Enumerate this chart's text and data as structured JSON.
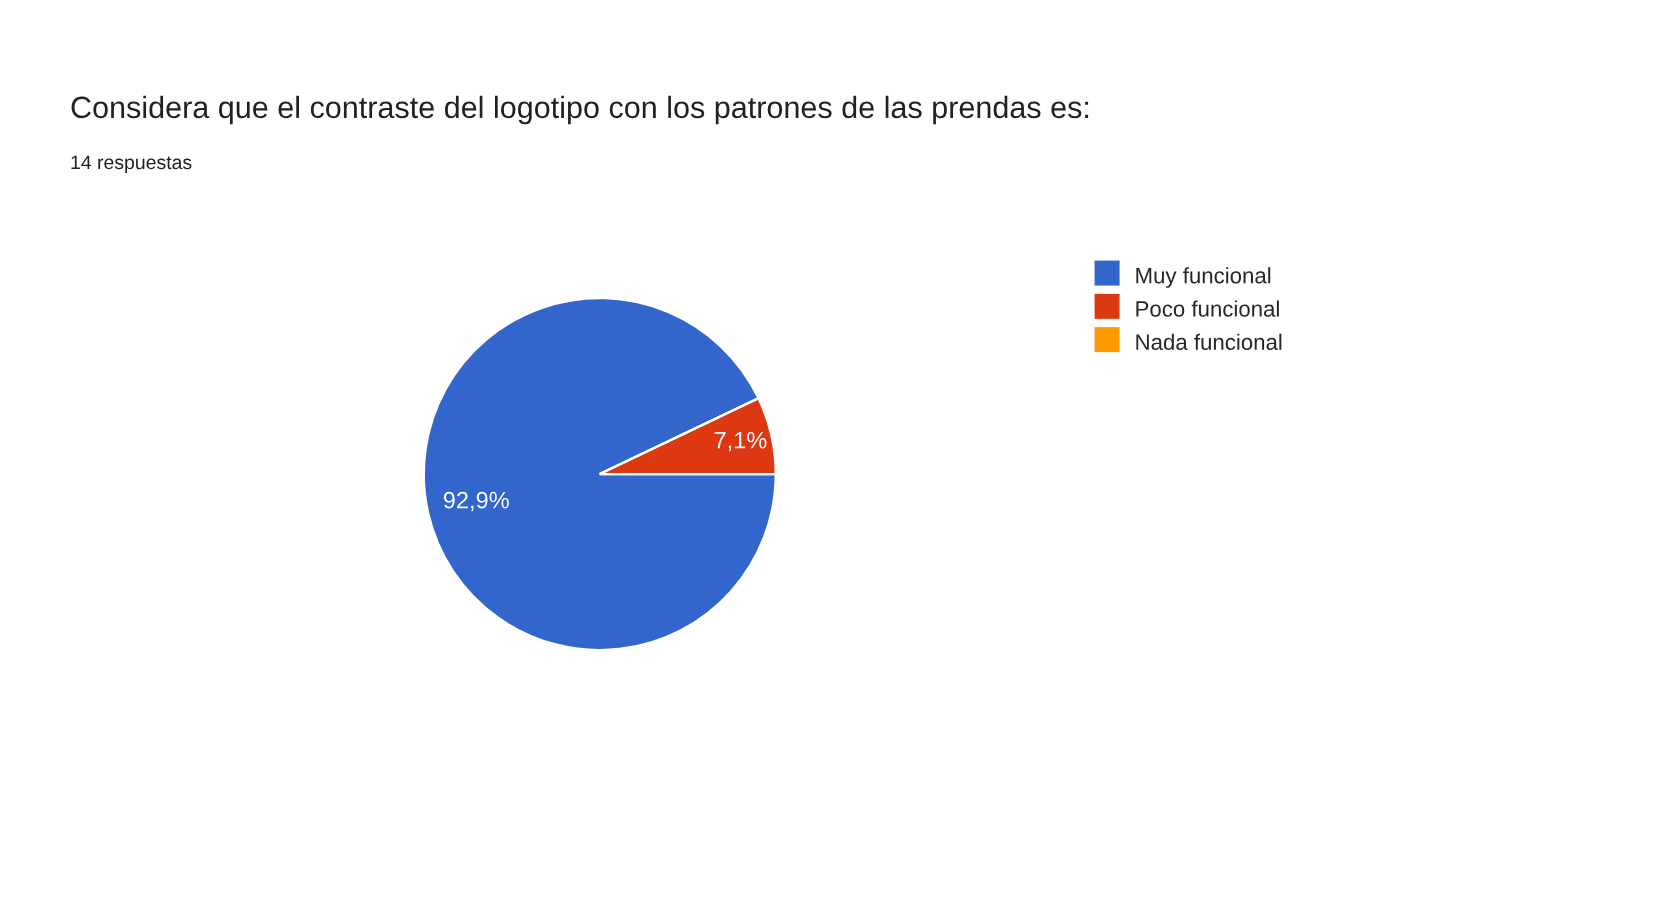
{
  "chart_data": {
    "type": "pie",
    "title": "Considera que el contraste del logotipo con los patrones de las prendas es:",
    "subtitle": "14 respuestas",
    "categories": [
      "Muy funcional",
      "Poco funcional",
      "Nada funcional"
    ],
    "values": [
      92.9,
      7.1,
      0
    ],
    "colors": [
      "#3366cc",
      "#dc3912",
      "#ff9900"
    ],
    "value_labels": [
      "92,9%",
      "7,1%",
      null
    ],
    "legend": "right"
  }
}
